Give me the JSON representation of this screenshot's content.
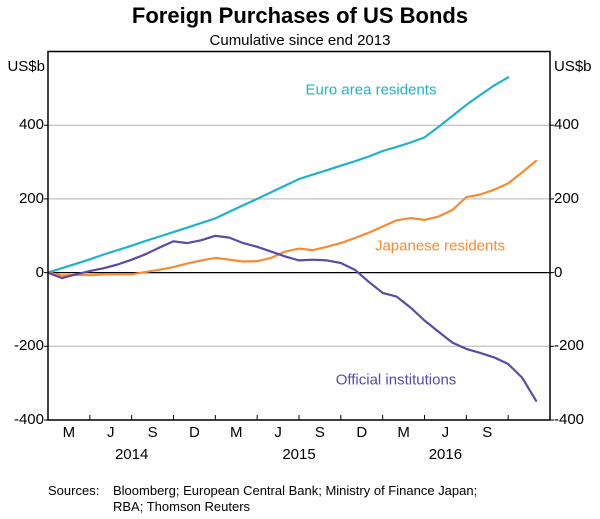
{
  "title": "Foreign Purchases of US Bonds",
  "subtitle": "Cumulative since end 2013",
  "y_axis": {
    "unit_left": "US$b",
    "unit_right": "US$b",
    "ticks": [
      400,
      200,
      0,
      -200,
      -400
    ]
  },
  "x_axis": {
    "quarter_labels": [
      "M",
      "J",
      "S",
      "D",
      "M",
      "J",
      "S",
      "D",
      "M",
      "J",
      "S"
    ],
    "year_labels": [
      "2014",
      "2015",
      "2016"
    ]
  },
  "sources": {
    "label": "Sources:",
    "line1": "Bloomberg; European Central Bank; Ministry of Finance Japan;",
    "line2": "RBA; Thomson Reuters"
  },
  "chart_data": {
    "type": "line",
    "title": "Foreign Purchases of US Bonds",
    "subtitle": "Cumulative since end 2013",
    "ylabel": "US$b",
    "ylim": [
      -400,
      600
    ],
    "xlim_months": [
      0,
      36
    ],
    "x_unit": "months since end 2013 (0 = Dec 2013)",
    "grid_on": true,
    "gridlines": [
      400,
      200,
      -200
    ],
    "zero_line": 0,
    "gridline_color": "#b4b4b4",
    "series": [
      {
        "name": "Euro area residents",
        "color": "#1fb3c9",
        "label_pos": {
          "x": 371,
          "y": 90
        },
        "x": [
          0,
          1,
          2,
          3,
          4,
          5,
          6,
          7,
          8,
          9,
          10,
          11,
          12,
          13,
          14,
          15,
          16,
          17,
          18,
          19,
          20,
          21,
          22,
          23,
          24,
          25,
          26,
          27,
          28,
          29,
          30,
          31,
          32,
          33
        ],
        "values": [
          0,
          12,
          24,
          36,
          49,
          61,
          73,
          86,
          98,
          110,
          122,
          135,
          147,
          165,
          183,
          200,
          218,
          236,
          254,
          266,
          278,
          290,
          302,
          315,
          330,
          341,
          353,
          367,
          395,
          425,
          455,
          482,
          508,
          530
        ]
      },
      {
        "name": "Japanese residents",
        "color": "#f68b33",
        "label_pos": {
          "x": 440,
          "y": 246
        },
        "x": [
          0,
          1,
          2,
          3,
          4,
          5,
          6,
          7,
          8,
          9,
          10,
          11,
          12,
          13,
          14,
          15,
          16,
          17,
          18,
          19,
          20,
          21,
          22,
          23,
          24,
          25,
          26,
          27,
          28,
          29,
          30,
          31,
          32,
          33,
          34,
          35
        ],
        "values": [
          0,
          -8,
          -6,
          -7,
          -5,
          -4,
          -5,
          2,
          8,
          15,
          25,
          33,
          40,
          35,
          30,
          31,
          40,
          57,
          65,
          61,
          70,
          80,
          94,
          108,
          125,
          142,
          148,
          143,
          152,
          170,
          205,
          212,
          225,
          242,
          272,
          303
        ]
      },
      {
        "name": "Official institutions",
        "color": "#5b4ba6",
        "label_pos": {
          "x": 396,
          "y": 380
        },
        "x": [
          0,
          1,
          2,
          3,
          4,
          5,
          6,
          7,
          8,
          9,
          10,
          11,
          12,
          13,
          14,
          15,
          16,
          17,
          18,
          19,
          20,
          21,
          22,
          23,
          24,
          25,
          26,
          27,
          28,
          29,
          30,
          31,
          32,
          33,
          34,
          35
        ],
        "values": [
          0,
          -15,
          -5,
          4,
          12,
          22,
          35,
          50,
          68,
          85,
          80,
          88,
          100,
          95,
          80,
          70,
          57,
          44,
          33,
          35,
          33,
          26,
          8,
          -25,
          -55,
          -65,
          -95,
          -130,
          -160,
          -190,
          -207,
          -218,
          -230,
          -248,
          -285,
          -348
        ]
      }
    ]
  }
}
